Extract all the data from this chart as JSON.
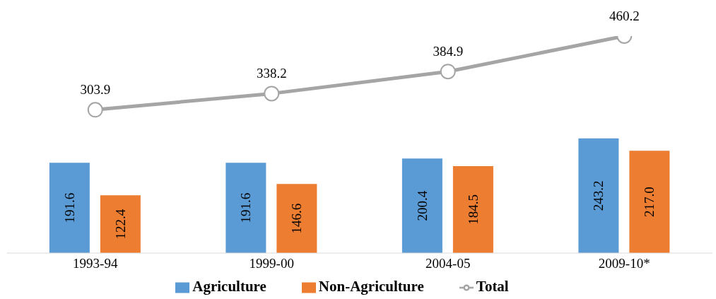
{
  "chart_data": {
    "type": "bar",
    "categories": [
      "1993-94",
      "1999-00",
      "2004-05",
      "2009-10*"
    ],
    "series": [
      {
        "name": "Agriculture",
        "color": "#5b9bd5",
        "values": [
          191.6,
          191.6,
          200.4,
          243.2
        ],
        "value_labels": [
          "191.6",
          "191.6",
          "200.4",
          "243.2"
        ]
      },
      {
        "name": "Non-Agriculture",
        "color": "#ed7d31",
        "values": [
          122.4,
          146.6,
          184.5,
          217.0
        ],
        "value_labels": [
          "122.4",
          "146.6",
          "184.5",
          "217.0"
        ]
      },
      {
        "name": "Total",
        "type": "line",
        "color": "#a5a5a5",
        "values": [
          303.9,
          338.2,
          384.9,
          460.2
        ],
        "value_labels": [
          "303.9",
          "338.2",
          "384.9",
          "460.2"
        ]
      }
    ],
    "tick_labels": "x",
    "legend": "bottom",
    "grid": false,
    "marker": "circle"
  }
}
